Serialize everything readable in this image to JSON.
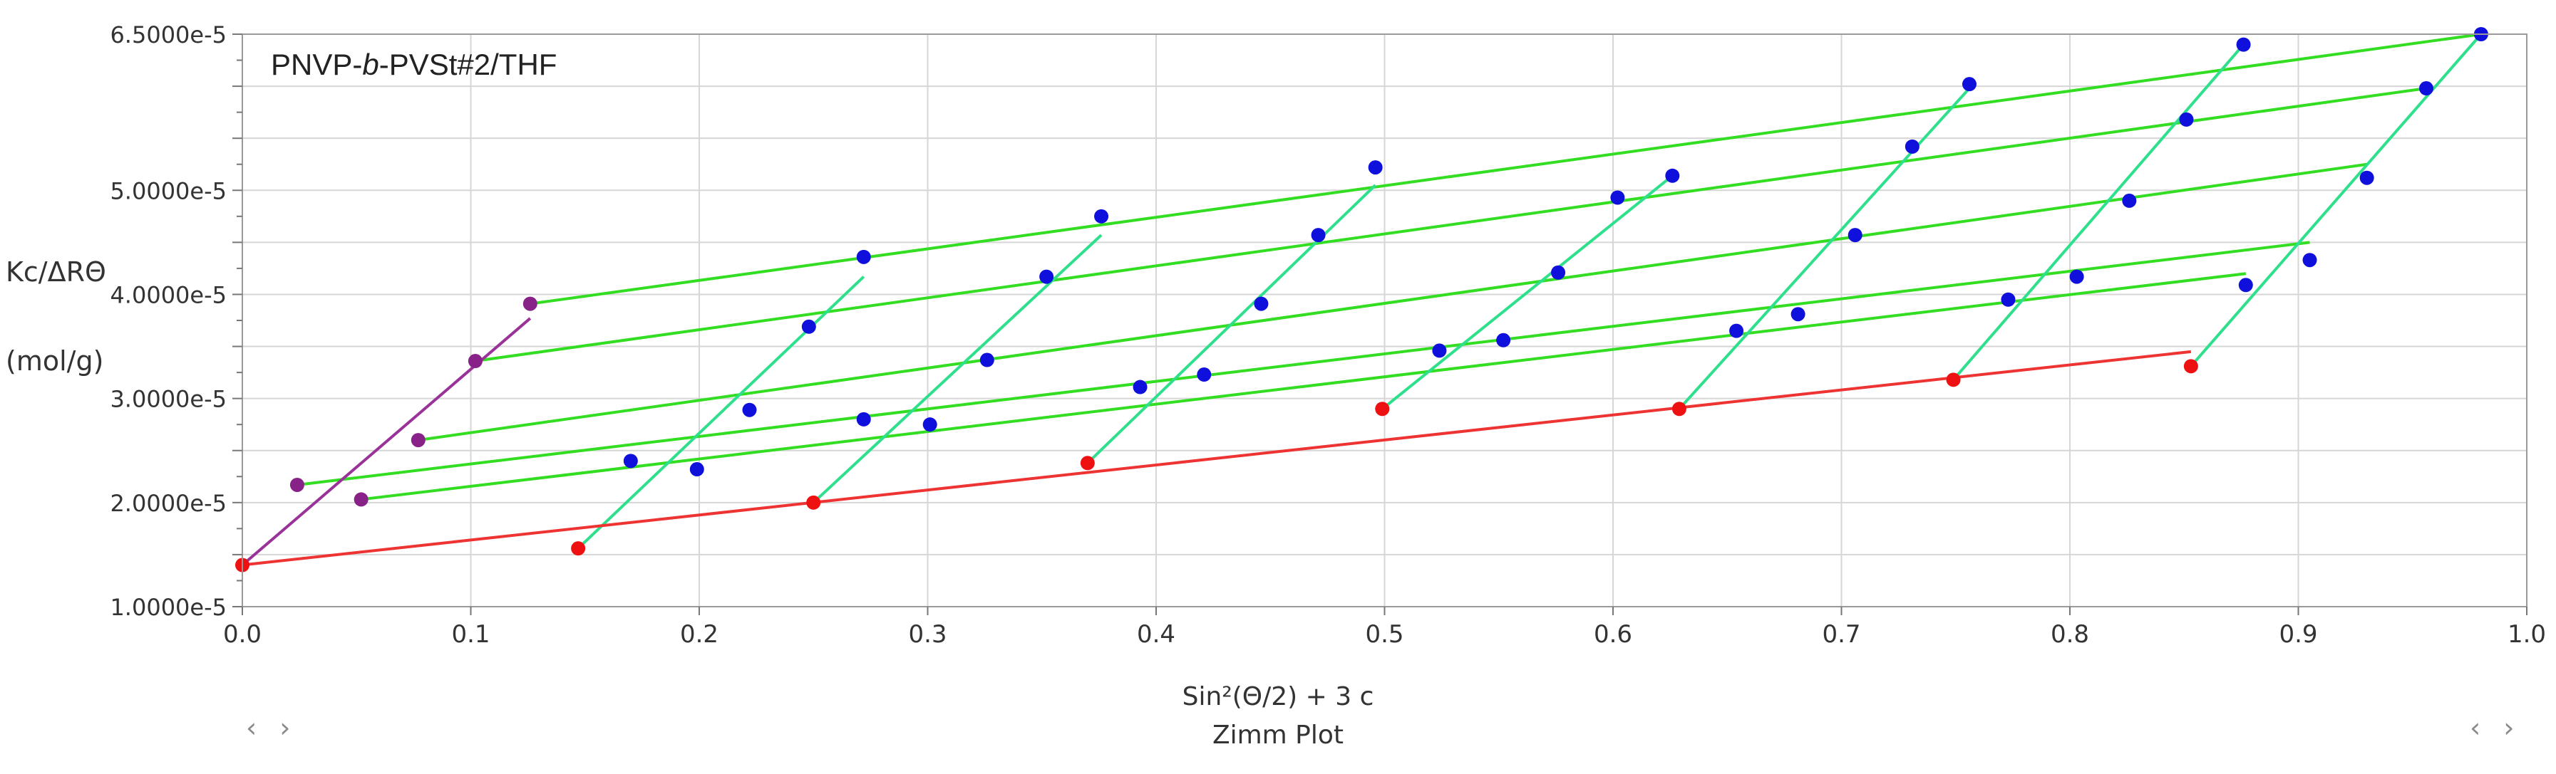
{
  "chart_data": {
    "type": "scatter",
    "title": "Zimm Plot",
    "annotation": {
      "prefix": "PNVP-",
      "italic": "b",
      "suffix": "-PVSt#2/THF"
    },
    "xlabel": "Sin²(Θ/2) + 3 c",
    "ylabel": [
      "Kc/ΔRΘ",
      "(mol/g)"
    ],
    "xlim": [
      0,
      1
    ],
    "ylim": [
      1e-05,
      6.5e-05
    ],
    "xticks": [
      "0.0",
      "0.1",
      "0.2",
      "0.3",
      "0.4",
      "0.5",
      "0.6",
      "0.7",
      "0.8",
      "0.9",
      "1.0"
    ],
    "yticks": [
      {
        "v": 1e-05,
        "label": "1.0000e-5"
      },
      {
        "v": 2e-05,
        "label": "2.0000e-5"
      },
      {
        "v": 3e-05,
        "label": "3.0000e-5"
      },
      {
        "v": 4e-05,
        "label": "4.0000e-5"
      },
      {
        "v": 5e-05,
        "label": "5.0000e-5"
      },
      {
        "v": 6.5e-05,
        "label": "6.5000e-5"
      }
    ],
    "grid": true,
    "colors": {
      "angle_line": "#2ee08c",
      "conc_line": "#33dd22",
      "extrap_angle": "#ee3333",
      "extrap_conc": "#993399",
      "point": "#1010dd",
      "point_extrap": "#ee1111",
      "point_conc0": "#882288",
      "grid": "#d6d6d6"
    },
    "points": [
      [
        0.17,
        2.4e-05
      ],
      [
        0.199,
        2.32e-05
      ],
      [
        0.222,
        2.89e-05
      ],
      [
        0.248,
        3.69e-05
      ],
      [
        0.272,
        4.36e-05
      ],
      [
        0.272,
        2.8e-05
      ],
      [
        0.301,
        2.75e-05
      ],
      [
        0.326,
        3.37e-05
      ],
      [
        0.352,
        4.17e-05
      ],
      [
        0.376,
        4.75e-05
      ],
      [
        0.393,
        3.11e-05
      ],
      [
        0.421,
        3.23e-05
      ],
      [
        0.446,
        3.91e-05
      ],
      [
        0.471,
        4.57e-05
      ],
      [
        0.496,
        5.22e-05
      ],
      [
        0.524,
        3.46e-05
      ],
      [
        0.552,
        3.56e-05
      ],
      [
        0.576,
        4.21e-05
      ],
      [
        0.602,
        4.93e-05
      ],
      [
        0.626,
        5.14e-05
      ],
      [
        0.654,
        3.65e-05
      ],
      [
        0.681,
        3.81e-05
      ],
      [
        0.706,
        4.57e-05
      ],
      [
        0.731,
        5.42e-05
      ],
      [
        0.756,
        6.02e-05
      ],
      [
        0.773,
        3.95e-05
      ],
      [
        0.803,
        4.17e-05
      ],
      [
        0.826,
        4.9e-05
      ],
      [
        0.851,
        5.68e-05
      ],
      [
        0.876,
        6.4e-05
      ],
      [
        0.877,
        4.09e-05
      ],
      [
        0.905,
        4.33e-05
      ],
      [
        0.93,
        5.12e-05
      ],
      [
        0.956,
        5.98e-05
      ],
      [
        0.98,
        6.5e-05
      ]
    ],
    "points_extrap_c0": [
      [
        0.0,
        1.4e-05
      ],
      [
        0.147,
        1.56e-05
      ],
      [
        0.25,
        2e-05
      ],
      [
        0.37,
        2.38e-05
      ],
      [
        0.499,
        2.9e-05
      ],
      [
        0.629,
        2.9e-05
      ],
      [
        0.749,
        3.18e-05
      ],
      [
        0.853,
        3.31e-05
      ]
    ],
    "points_extrap_theta0": [
      [
        0.024,
        2.17e-05
      ],
      [
        0.052,
        2.03e-05
      ],
      [
        0.077,
        2.6e-05
      ],
      [
        0.102,
        3.36e-05
      ],
      [
        0.126,
        3.91e-05
      ]
    ],
    "conc_lines": [
      [
        [
          0.024,
          2.17e-05
        ],
        [
          0.905,
          4.5e-05
        ]
      ],
      [
        [
          0.052,
          2.03e-05
        ],
        [
          0.877,
          4.2e-05
        ]
      ],
      [
        [
          0.077,
          2.6e-05
        ],
        [
          0.93,
          5.25e-05
        ]
      ],
      [
        [
          0.102,
          3.36e-05
        ],
        [
          0.956,
          5.98e-05
        ]
      ],
      [
        [
          0.126,
          3.91e-05
        ],
        [
          0.98,
          6.5e-05
        ]
      ]
    ],
    "angle_lines": [
      [
        [
          0.147,
          1.56e-05
        ],
        [
          0.272,
          4.17e-05
        ]
      ],
      [
        [
          0.25,
          2e-05
        ],
        [
          0.376,
          4.57e-05
        ]
      ],
      [
        [
          0.37,
          2.38e-05
        ],
        [
          0.496,
          5.05e-05
        ]
      ],
      [
        [
          0.499,
          2.9e-05
        ],
        [
          0.626,
          5.14e-05
        ]
      ],
      [
        [
          0.629,
          2.9e-05
        ],
        [
          0.756,
          5.98e-05
        ]
      ],
      [
        [
          0.749,
          3.18e-05
        ],
        [
          0.876,
          6.4e-05
        ]
      ],
      [
        [
          0.853,
          3.31e-05
        ],
        [
          0.98,
          6.5e-05
        ]
      ]
    ],
    "extrap_line_c0": [
      [
        0.0,
        1.4e-05
      ],
      [
        0.853,
        3.45e-05
      ]
    ],
    "extrap_line_theta0": [
      [
        0.0,
        1.4e-05
      ],
      [
        0.126,
        3.77e-05
      ]
    ]
  },
  "nav": {
    "left": "‹ ›",
    "right": "‹ ›"
  }
}
